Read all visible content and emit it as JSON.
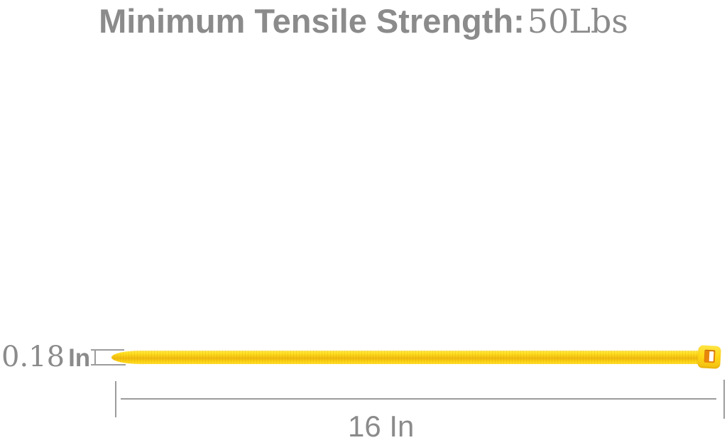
{
  "header": {
    "title_label": "Minimum Tensile Strength:",
    "title_value": "50Lbs"
  },
  "annotations": {
    "width": {
      "value": "0.18",
      "unit": "In"
    },
    "length": {
      "value": "16",
      "unit": "In"
    }
  },
  "product": {
    "type": "nylon cable tie",
    "color_name": "yellow"
  },
  "colors": {
    "text_gray": "#8b8b8b",
    "dimension_line_gray": "#9c9c9c",
    "tie_yellow": "#ffd816",
    "tie_shade": "#eeba10",
    "head_slot_orange": "#e8860c",
    "background": "#ffffff"
  }
}
